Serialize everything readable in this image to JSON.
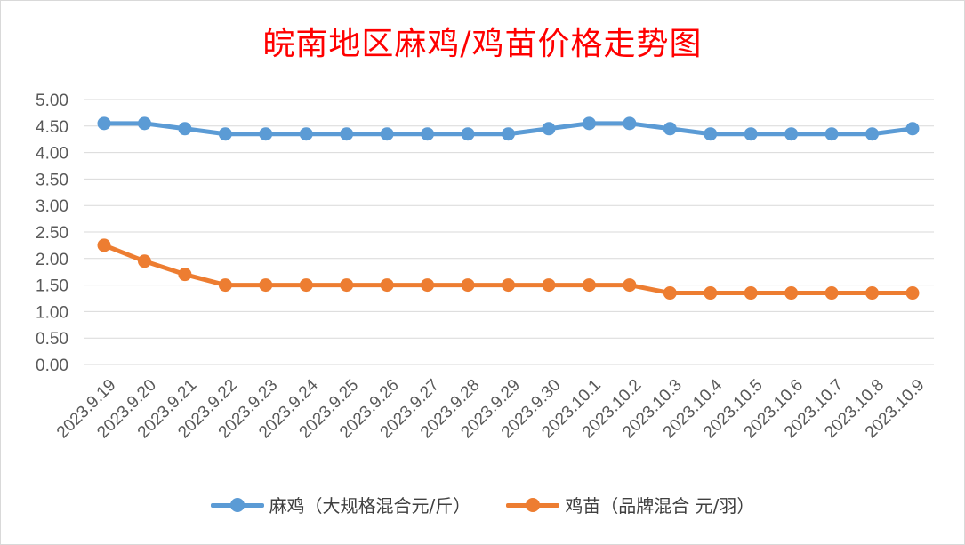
{
  "chart_data": {
    "type": "line",
    "title": "皖南地区麻鸡/鸡苗价格走势图",
    "categories": [
      "2023.9.19",
      "2023.9.20",
      "2023.9.21",
      "2023.9.22",
      "2023.9.23",
      "2023.9.24",
      "2023.9.25",
      "2023.9.26",
      "2023.9.27",
      "2023.9.28",
      "2023.9.29",
      "2023.9.30",
      "2023.10.1",
      "2023.10.2",
      "2023.10.3",
      "2023.10.4",
      "2023.10.5",
      "2023.10.6",
      "2023.10.7",
      "2023.10.8",
      "2023.10.9"
    ],
    "series": [
      {
        "name": "麻鸡（大规格混合元/斤）",
        "color": "#5b9bd5",
        "values": [
          4.55,
          4.55,
          4.45,
          4.35,
          4.35,
          4.35,
          4.35,
          4.35,
          4.35,
          4.35,
          4.35,
          4.45,
          4.55,
          4.55,
          4.45,
          4.35,
          4.35,
          4.35,
          4.35,
          4.35,
          4.45
        ]
      },
      {
        "name": "鸡苗（品牌混合 元/羽）",
        "color": "#ed7d31",
        "values": [
          2.25,
          1.95,
          1.7,
          1.5,
          1.5,
          1.5,
          1.5,
          1.5,
          1.5,
          1.5,
          1.5,
          1.5,
          1.5,
          1.5,
          1.35,
          1.35,
          1.35,
          1.35,
          1.35,
          1.35,
          1.35
        ]
      }
    ],
    "ylim": [
      0,
      5
    ],
    "yticks": [
      "0.00",
      "0.50",
      "1.00",
      "1.50",
      "2.00",
      "2.50",
      "3.00",
      "3.50",
      "4.00",
      "4.50",
      "5.00"
    ],
    "xlabel": "",
    "ylabel": "",
    "grid": true,
    "legend": "bottom",
    "title_color": "#ff0000"
  }
}
